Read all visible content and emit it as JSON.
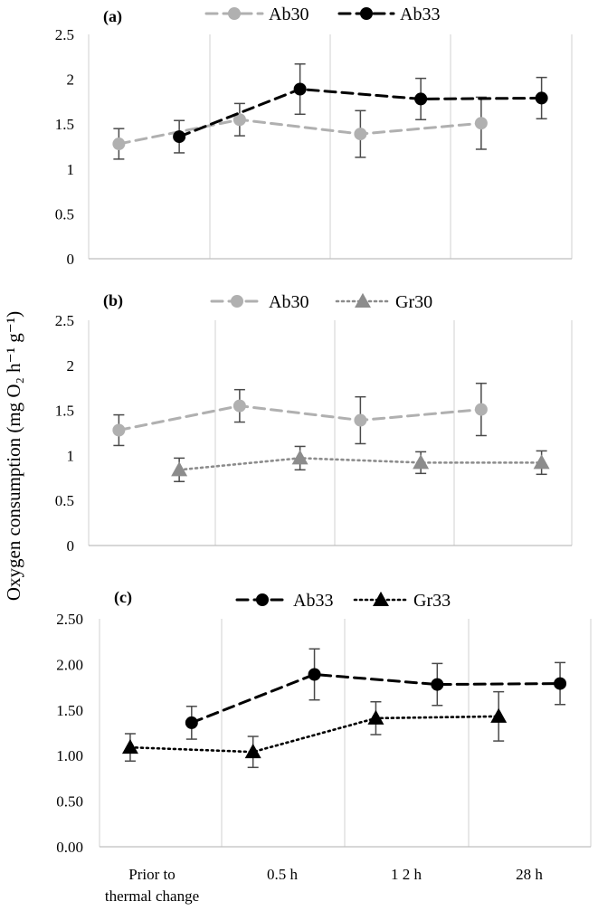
{
  "figure": {
    "y_axis_label": "Oxygen consumption (mg O₂ h⁻¹ g⁻¹)",
    "x_category_labels": [
      [
        "Prior to",
        "thermal change"
      ],
      [
        "0.5 h"
      ],
      [
        "1 2 h"
      ],
      [
        "28 h"
      ]
    ]
  },
  "chart_data": [
    {
      "type": "line",
      "panel_label": "(a)",
      "ylim": [
        0,
        2.5
      ],
      "y_ticks": [
        0,
        0.5,
        1,
        1.5,
        2,
        2.5
      ],
      "y_tick_labels": [
        "0",
        "0.5",
        "1",
        "1.5",
        "2",
        "2.5"
      ],
      "categories": [
        "Prior to thermal change",
        "0.5 h",
        "12 h",
        "28 h"
      ],
      "legend": [
        "Ab30",
        "Ab33"
      ],
      "series": [
        {
          "name": "Ab30",
          "color": "#b0b0b0",
          "marker": "circle",
          "line": "dashed",
          "values": [
            1.28,
            1.55,
            1.39,
            1.51
          ],
          "err": [
            0.17,
            0.18,
            0.26,
            0.29
          ],
          "offset": -0.25
        },
        {
          "name": "Ab33",
          "color": "#000000",
          "marker": "circle",
          "line": "dashed",
          "values": [
            1.36,
            1.89,
            1.78,
            1.79
          ],
          "err": [
            0.18,
            0.28,
            0.23,
            0.23
          ],
          "offset": 0.25
        }
      ]
    },
    {
      "type": "line",
      "panel_label": "(b)",
      "ylim": [
        0,
        2.5
      ],
      "y_ticks": [
        0,
        0.5,
        1,
        1.5,
        2,
        2.5
      ],
      "y_tick_labels": [
        "0",
        "0.5",
        "1",
        "1.5",
        "2",
        "2.5"
      ],
      "categories": [
        "Prior to thermal change",
        "0.5 h",
        "12 h",
        "28 h"
      ],
      "legend": [
        "Ab30",
        "Gr30"
      ],
      "series": [
        {
          "name": "Ab30",
          "color": "#b0b0b0",
          "marker": "circle",
          "line": "dashed",
          "values": [
            1.28,
            1.55,
            1.39,
            1.51
          ],
          "err": [
            0.17,
            0.18,
            0.26,
            0.29
          ],
          "offset": -0.25
        },
        {
          "name": "Gr30",
          "color": "#8c8c8c",
          "marker": "triangle",
          "line": "dotted",
          "values": [
            0.84,
            0.97,
            0.92,
            0.92
          ],
          "err": [
            0.13,
            0.13,
            0.12,
            0.13
          ],
          "offset": 0.25
        }
      ]
    },
    {
      "type": "line",
      "panel_label": "(c)",
      "ylim": [
        0,
        2.5
      ],
      "y_ticks": [
        0,
        0.5,
        1,
        1.5,
        2,
        2.5
      ],
      "y_tick_labels": [
        "0.00",
        "0.50",
        "1.00",
        "1.50",
        "2.00",
        "2.50"
      ],
      "categories": [
        "Prior to thermal change",
        "0.5 h",
        "12 h",
        "28 h"
      ],
      "legend": [
        "Ab33",
        "Gr33"
      ],
      "series": [
        {
          "name": "Ab33",
          "color": "#000000",
          "marker": "circle",
          "line": "dashed",
          "values": [
            1.36,
            1.89,
            1.78,
            1.79
          ],
          "err": [
            0.18,
            0.28,
            0.23,
            0.23
          ],
          "offset": 0.25
        },
        {
          "name": "Gr33",
          "color": "#000000",
          "marker": "triangle",
          "line": "dotted",
          "values": [
            1.09,
            1.04,
            1.41,
            1.43
          ],
          "err": [
            0.15,
            0.17,
            0.18,
            0.27
          ],
          "offset": -0.25
        }
      ]
    }
  ]
}
